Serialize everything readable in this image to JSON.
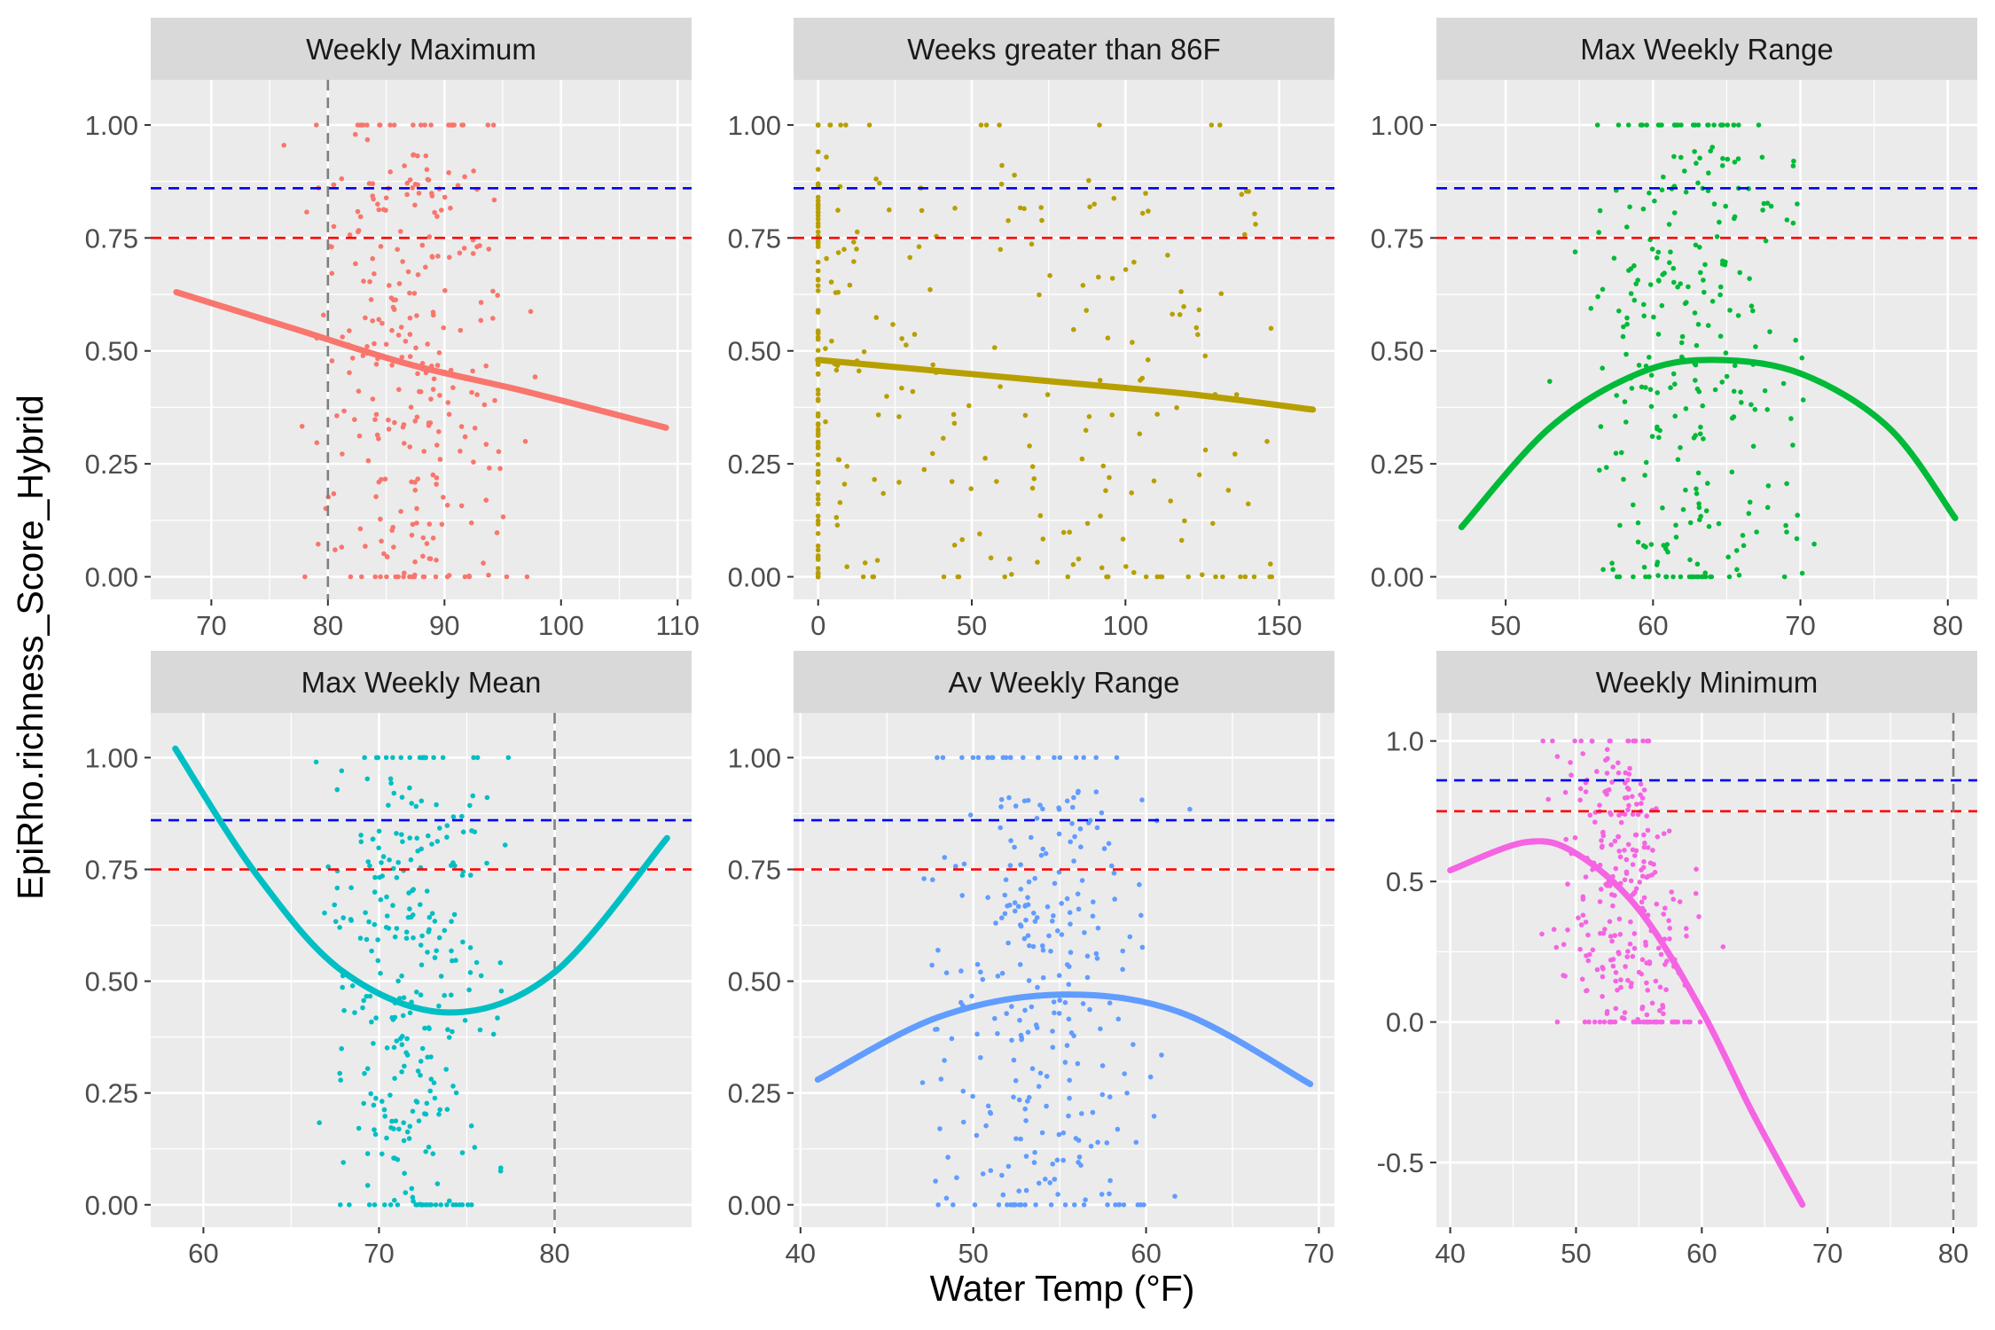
{
  "figure": {
    "xlabel": "Water Temp (°F)",
    "ylabel": "EpiRho.richness_Score_Hybrid"
  },
  "reference_line_colors": {
    "blue": "#0000ff",
    "red": "#ff0000",
    "gray": "#7f7f7f"
  },
  "chart_data": [
    {
      "type": "scatter",
      "title": "Weekly Maximum",
      "color": "#F8766D",
      "xlim": [
        64.8,
        111.2
      ],
      "ylim": [
        -0.05,
        1.1
      ],
      "xticks": [
        70,
        80,
        90,
        100,
        110
      ],
      "yticks": [
        0,
        0.25,
        0.5,
        0.75,
        1.0
      ],
      "ytick_labels": [
        "0.00",
        "0.25",
        "0.50",
        "0.75",
        "1.00"
      ],
      "hlines": [
        {
          "y": 0.86,
          "color": "#0000ff"
        },
        {
          "y": 0.75,
          "color": "#ff0000"
        }
      ],
      "vlines": [
        {
          "x": 80,
          "color": "#7f7f7f"
        }
      ],
      "x_range": [
        75,
        99
      ],
      "x_center": 89,
      "fit": {
        "x": [
          67,
          77,
          87,
          97,
          109
        ],
        "y": [
          0.63,
          0.55,
          0.47,
          0.41,
          0.33
        ]
      },
      "seed": 11
    },
    {
      "type": "scatter",
      "title": "Weeks greater than 86F",
      "color": "#B79F00",
      "xlim": [
        -8,
        168
      ],
      "ylim": [
        -0.05,
        1.1
      ],
      "xticks": [
        0,
        50,
        100,
        150
      ],
      "yticks": [
        0,
        0.25,
        0.5,
        0.75,
        1.0
      ],
      "ytick_labels": [
        "0.00",
        "0.25",
        "0.50",
        "0.75",
        "1.00"
      ],
      "hlines": [
        {
          "y": 0.86,
          "color": "#0000ff"
        },
        {
          "y": 0.75,
          "color": "#ff0000"
        }
      ],
      "vlines": [],
      "x_range": [
        0,
        148
      ],
      "x_center": 0,
      "fit": {
        "x": [
          0,
          40,
          80,
          120,
          161
        ],
        "y": [
          0.48,
          0.455,
          0.43,
          0.405,
          0.37
        ]
      },
      "seed": 23
    },
    {
      "type": "scatter",
      "title": "Max Weekly Range",
      "color": "#00BA38",
      "xlim": [
        45.3,
        82
      ],
      "ylim": [
        -0.05,
        1.1
      ],
      "xticks": [
        50,
        60,
        70,
        80
      ],
      "yticks": [
        0,
        0.25,
        0.5,
        0.75,
        1.0
      ],
      "ytick_labels": [
        "0.00",
        "0.25",
        "0.50",
        "0.75",
        "1.00"
      ],
      "hlines": [
        {
          "y": 0.86,
          "color": "#0000ff"
        },
        {
          "y": 0.75,
          "color": "#ff0000"
        }
      ],
      "vlines": [],
      "x_range": [
        52,
        73
      ],
      "x_center": 65,
      "fit": {
        "x": [
          47,
          53,
          59,
          64,
          70,
          76,
          80.5
        ],
        "y": [
          0.11,
          0.33,
          0.45,
          0.48,
          0.45,
          0.33,
          0.13
        ]
      },
      "seed": 37
    },
    {
      "type": "scatter",
      "title": "Max Weekly Mean",
      "color": "#00BFC4",
      "xlim": [
        57,
        87.8
      ],
      "ylim": [
        -0.05,
        1.1
      ],
      "xticks": [
        60,
        70,
        80
      ],
      "yticks": [
        0,
        0.25,
        0.5,
        0.75,
        1.0
      ],
      "ytick_labels": [
        "0.00",
        "0.25",
        "0.50",
        "0.75",
        "1.00"
      ],
      "hlines": [
        {
          "y": 0.86,
          "color": "#0000ff"
        },
        {
          "y": 0.75,
          "color": "#ff0000"
        }
      ],
      "vlines": [
        {
          "x": 80,
          "color": "#7f7f7f"
        }
      ],
      "x_range": [
        65,
        79
      ],
      "x_center": 72,
      "fit": {
        "x": [
          58.4,
          63,
          68,
          74,
          80,
          86.4
        ],
        "y": [
          1.02,
          0.74,
          0.52,
          0.43,
          0.52,
          0.82
        ]
      },
      "seed": 53
    },
    {
      "type": "scatter",
      "title": "Av Weekly Range",
      "color": "#619CFF",
      "xlim": [
        39.6,
        70.9
      ],
      "ylim": [
        -0.05,
        1.1
      ],
      "xticks": [
        40,
        50,
        60,
        70
      ],
      "yticks": [
        0,
        0.25,
        0.5,
        0.75,
        1.0
      ],
      "ytick_labels": [
        "0.00",
        "0.25",
        "0.50",
        "0.75",
        "1.00"
      ],
      "hlines": [
        {
          "y": 0.86,
          "color": "#0000ff"
        },
        {
          "y": 0.75,
          "color": "#ff0000"
        }
      ],
      "vlines": [],
      "x_range": [
        45,
        63
      ],
      "x_center": 56,
      "fit": {
        "x": [
          41,
          48,
          55,
          62,
          69.5
        ],
        "y": [
          0.28,
          0.42,
          0.47,
          0.43,
          0.27
        ]
      },
      "seed": 71
    },
    {
      "type": "scatter",
      "title": "Weekly Minimum",
      "color": "#F564E3",
      "xlim": [
        38.9,
        81.9
      ],
      "ylim": [
        -0.73,
        1.1
      ],
      "xticks": [
        40,
        50,
        60,
        70,
        80
      ],
      "yticks": [
        -0.5,
        0,
        0.5,
        1.0
      ],
      "ytick_labels": [
        "-0.5",
        "0.0",
        "0.5",
        "1.0"
      ],
      "hlines": [
        {
          "y": 0.86,
          "color": "#0000ff"
        },
        {
          "y": 0.75,
          "color": "#ff0000"
        }
      ],
      "vlines": [
        {
          "x": 80,
          "color": "#7f7f7f"
        }
      ],
      "x_range": [
        46,
        62
      ],
      "x_center": 54,
      "fit": {
        "x": [
          40,
          46,
          50,
          55,
          60,
          64,
          68
        ],
        "y": [
          0.54,
          0.64,
          0.6,
          0.4,
          0.04,
          -0.32,
          -0.65
        ]
      },
      "seed": 97
    }
  ]
}
